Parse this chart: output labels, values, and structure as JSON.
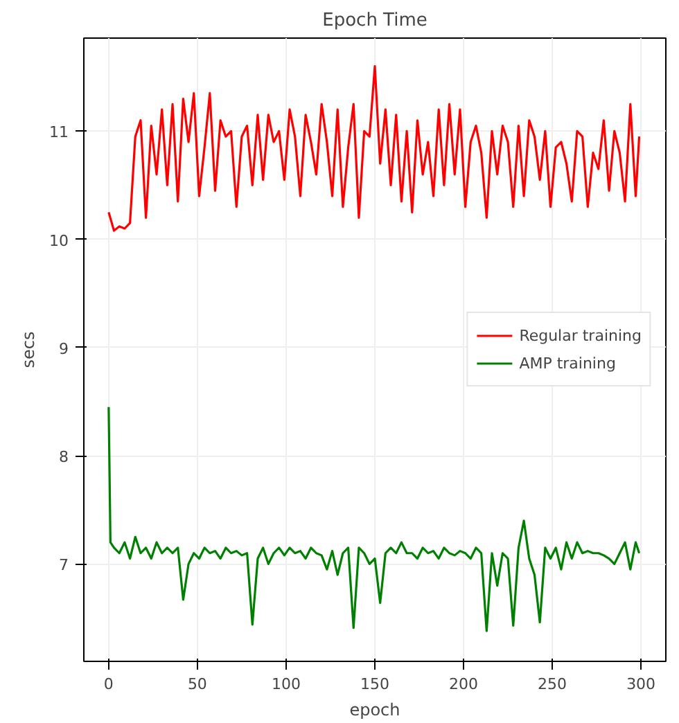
{
  "chart_data": {
    "type": "line",
    "title": "Epoch Time",
    "xlabel": "epoch",
    "ylabel": "secs",
    "xlim": [
      -14,
      314
    ],
    "ylim": [
      6.1,
      11.86
    ],
    "xticks": [
      0,
      50,
      100,
      150,
      200,
      250,
      300
    ],
    "yticks": [
      7,
      8,
      9,
      10,
      11
    ],
    "grid": true,
    "legend": "right",
    "marker": "none",
    "line_style": "solid",
    "series": [
      {
        "name": "Regular training",
        "color": "#ff0000",
        "x": [
          0,
          3,
          6,
          9,
          12,
          15,
          18,
          21,
          24,
          27,
          30,
          33,
          36,
          39,
          42,
          45,
          48,
          51,
          54,
          57,
          60,
          63,
          66,
          69,
          72,
          75,
          78,
          81,
          84,
          87,
          90,
          93,
          96,
          99,
          102,
          105,
          108,
          111,
          114,
          117,
          120,
          123,
          126,
          129,
          132,
          135,
          138,
          141,
          144,
          147,
          150,
          153,
          156,
          159,
          162,
          165,
          168,
          171,
          174,
          177,
          180,
          183,
          186,
          189,
          192,
          195,
          198,
          201,
          204,
          207,
          210,
          213,
          216,
          219,
          222,
          225,
          228,
          231,
          234,
          237,
          240,
          243,
          246,
          249,
          252,
          255,
          258,
          261,
          264,
          267,
          270,
          273,
          276,
          279,
          282,
          285,
          288,
          291,
          294,
          297,
          299
        ],
        "values": [
          10.25,
          10.08,
          10.12,
          10.1,
          10.15,
          10.95,
          11.1,
          10.2,
          11.05,
          10.6,
          11.2,
          10.5,
          11.25,
          10.35,
          11.3,
          10.9,
          11.35,
          10.4,
          10.85,
          11.35,
          10.45,
          11.1,
          10.95,
          11.0,
          10.3,
          10.95,
          11.05,
          10.5,
          11.15,
          10.55,
          11.15,
          10.9,
          11.0,
          10.55,
          11.2,
          10.95,
          10.4,
          11.15,
          10.9,
          10.6,
          11.25,
          10.9,
          10.4,
          11.2,
          10.3,
          10.85,
          11.25,
          10.2,
          11.0,
          10.95,
          11.6,
          10.7,
          11.2,
          10.5,
          11.15,
          10.35,
          11.0,
          10.25,
          11.1,
          10.6,
          10.9,
          10.4,
          11.2,
          10.5,
          11.25,
          10.6,
          11.2,
          10.3,
          10.9,
          11.05,
          10.8,
          10.2,
          11.0,
          10.6,
          11.05,
          10.9,
          10.3,
          11.05,
          10.4,
          11.1,
          10.95,
          10.55,
          11.0,
          10.3,
          10.85,
          10.9,
          10.7,
          10.35,
          11.0,
          10.95,
          10.3,
          10.8,
          10.65,
          11.1,
          10.45,
          11.0,
          10.8,
          10.35,
          11.25,
          10.4,
          10.95
        ]
      },
      {
        "name": "AMP training",
        "color": "#008000",
        "x": [
          0,
          1,
          3,
          6,
          9,
          12,
          15,
          18,
          21,
          24,
          27,
          30,
          33,
          36,
          39,
          42,
          45,
          48,
          51,
          54,
          57,
          60,
          63,
          66,
          69,
          72,
          75,
          78,
          81,
          84,
          87,
          90,
          93,
          96,
          99,
          102,
          105,
          108,
          111,
          114,
          117,
          120,
          123,
          126,
          129,
          132,
          135,
          138,
          141,
          144,
          147,
          150,
          153,
          156,
          159,
          162,
          165,
          168,
          171,
          174,
          177,
          180,
          183,
          186,
          189,
          192,
          195,
          198,
          201,
          204,
          207,
          210,
          213,
          216,
          219,
          222,
          225,
          228,
          231,
          234,
          237,
          240,
          243,
          246,
          249,
          252,
          255,
          258,
          261,
          264,
          267,
          270,
          273,
          276,
          279,
          282,
          285,
          288,
          291,
          294,
          297,
          299
        ],
        "values": [
          8.45,
          7.2,
          7.15,
          7.1,
          7.2,
          7.05,
          7.25,
          7.1,
          7.15,
          7.05,
          7.2,
          7.1,
          7.15,
          7.1,
          7.15,
          6.67,
          7.0,
          7.1,
          7.05,
          7.15,
          7.1,
          7.12,
          7.05,
          7.15,
          7.1,
          7.12,
          7.08,
          7.1,
          6.44,
          7.05,
          7.15,
          7.0,
          7.1,
          7.15,
          7.08,
          7.15,
          7.1,
          7.12,
          7.05,
          7.15,
          7.1,
          7.08,
          6.95,
          7.12,
          6.9,
          7.1,
          7.15,
          6.41,
          7.15,
          7.1,
          7.0,
          7.05,
          6.64,
          7.1,
          7.15,
          7.1,
          7.2,
          7.1,
          7.1,
          7.05,
          7.15,
          7.1,
          7.12,
          7.05,
          7.15,
          7.1,
          7.08,
          7.12,
          7.1,
          7.05,
          7.15,
          7.1,
          6.38,
          7.1,
          6.8,
          7.1,
          7.05,
          6.43,
          7.15,
          7.4,
          7.05,
          6.9,
          6.46,
          7.15,
          7.05,
          7.15,
          6.95,
          7.2,
          7.05,
          7.2,
          7.1,
          7.12,
          7.1,
          7.1,
          7.08,
          7.05,
          7.0,
          7.1,
          7.2,
          6.95,
          7.2,
          7.1
        ]
      }
    ]
  }
}
